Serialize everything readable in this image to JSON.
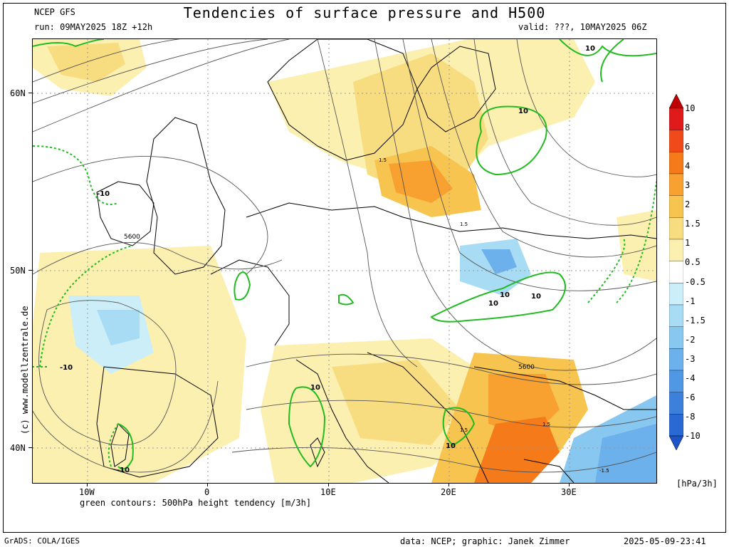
{
  "header": {
    "model": "NCEP GFS",
    "run": "run: 09MAY2025 18Z +12h",
    "title": "Tendencies of surface pressure and H500",
    "valid": "valid: ???, 10MAY2025 06Z"
  },
  "axes": {
    "lat_labels": [
      "60N",
      "50N",
      "40N"
    ],
    "lon_labels": [
      "10W",
      "0",
      "10E",
      "20E",
      "30E"
    ]
  },
  "contour_labels": [
    "10",
    "10",
    "10",
    "10",
    "10",
    "10",
    "10",
    "-10",
    "-10",
    "-10",
    "5600",
    "5600",
    "1.5",
    "1.5",
    "1.5",
    "1.5",
    "-1.5"
  ],
  "colorbar": {
    "labels": [
      "10",
      "8",
      "6",
      "4",
      "3",
      "2",
      "1.5",
      "1",
      "0.5",
      "-0.5",
      "-1",
      "-1.5",
      "-2",
      "-3",
      "-4",
      "-6",
      "-8",
      "-10"
    ],
    "colors": [
      "#c00000",
      "#e01a1a",
      "#f04a1a",
      "#f47a1a",
      "#f8a030",
      "#f8c450",
      "#f8dc80",
      "#fcf0b0",
      "#ffffff",
      "#cceef8",
      "#a8dcf4",
      "#88c8f0",
      "#6cb0ec",
      "#5098e4",
      "#3c80dc",
      "#2a68d4",
      "#1c54c8"
    ],
    "unit": "[hPa/3h]"
  },
  "footer": {
    "contour_note": "green contours: 500hPa height tendency [m/3h]",
    "grads": "GrADS: COLA/IGES",
    "credit": "data: NCEP; graphic: Janek Zimmer",
    "timestamp": "2025-05-09-23:41",
    "watermark": "(c) www.modellzentrale.de"
  },
  "colors": {
    "green_contour": "#22bb22",
    "gray_contour": "#555555",
    "grid": "#999999"
  }
}
